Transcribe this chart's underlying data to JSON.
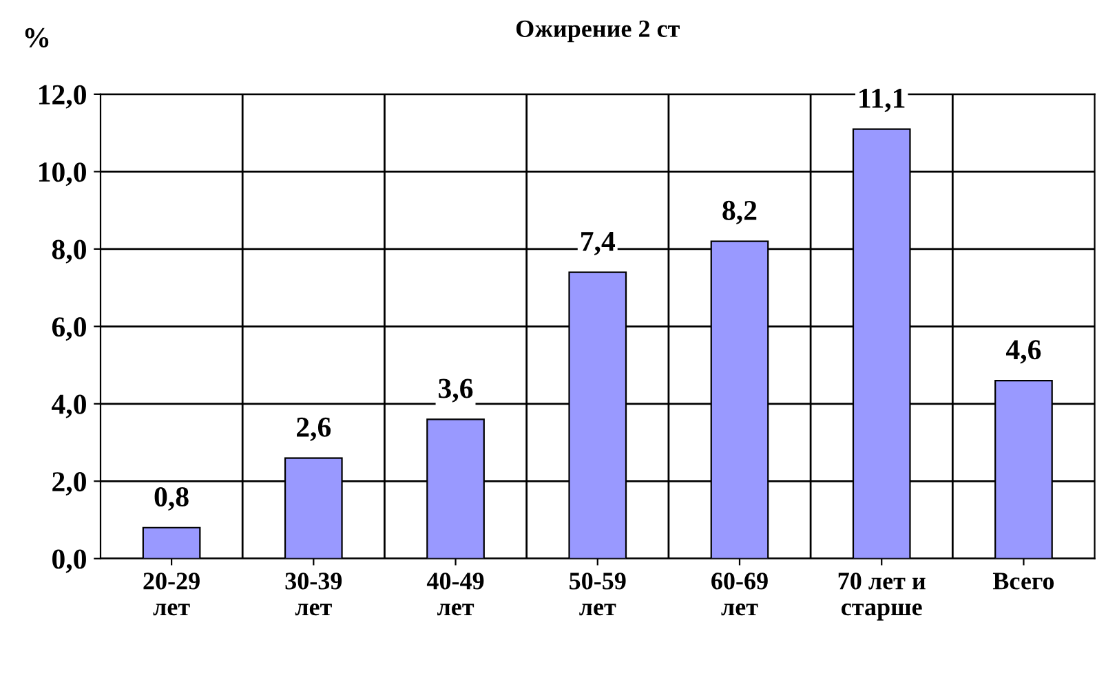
{
  "chart_data": {
    "type": "bar",
    "title": "Ожирение 2 ст",
    "ylabel": "%",
    "categories": [
      "20-29\nлет",
      "30-39\nлет",
      "40-49\nлет",
      "50-59\nлет",
      "60-69\nлет",
      "70 лет и\nстарше",
      "Всего"
    ],
    "values": [
      0.8,
      2.6,
      3.6,
      7.4,
      8.2,
      11.1,
      4.6
    ],
    "value_labels": [
      "0,8",
      "2,6",
      "3,6",
      "7,4",
      "8,2",
      "11,1",
      "4,6"
    ],
    "color": "#9999ff",
    "ylim": [
      0,
      12
    ],
    "yticks": [
      {
        "value": 0,
        "label": "0,0"
      },
      {
        "value": 2,
        "label": "2,0"
      },
      {
        "value": 4,
        "label": "4,0"
      },
      {
        "value": 6,
        "label": "6,0"
      },
      {
        "value": 8,
        "label": "8,0"
      },
      {
        "value": 10,
        "label": "10,0"
      },
      {
        "value": 12,
        "label": "12,0"
      }
    ],
    "grid": true,
    "legend": false
  }
}
